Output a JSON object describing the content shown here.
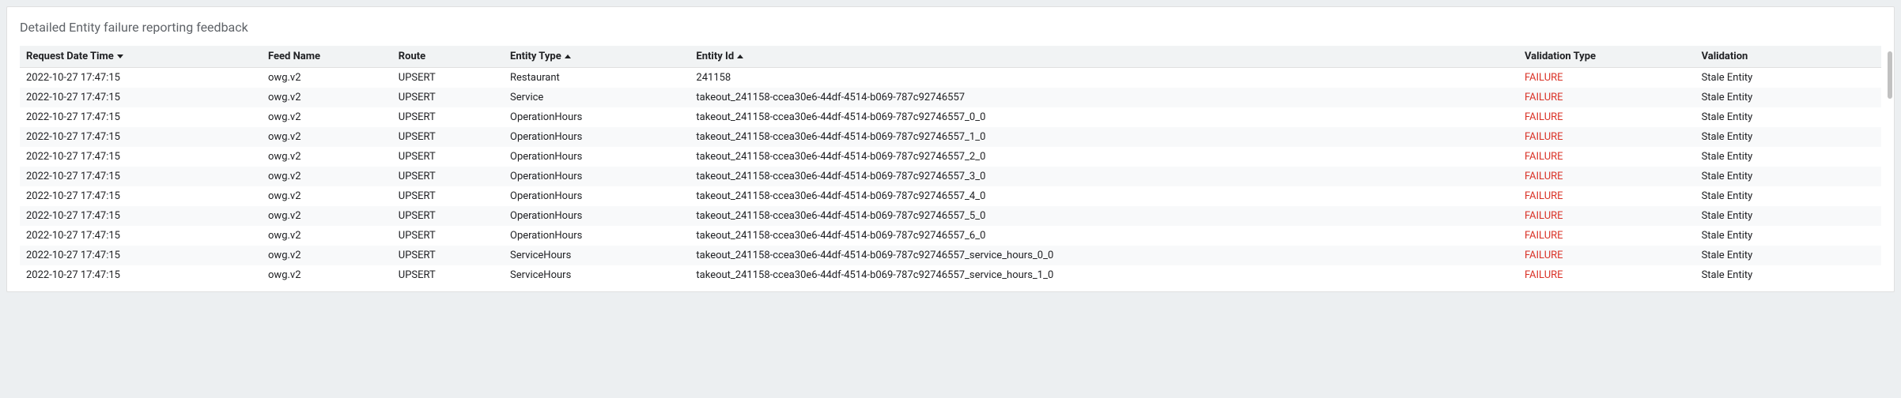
{
  "panel": {
    "title": "Detailed Entity failure reporting feedback"
  },
  "colors": {
    "failure": "#d93025",
    "header_bg": "#f1f3f4",
    "row_alt_bg": "#f8f9fa",
    "page_bg": "#eceff1",
    "panel_bg": "#ffffff",
    "text": "#202124",
    "muted": "#5f6368"
  },
  "table": {
    "columns": [
      {
        "label": "Request Date Time",
        "sort": "desc"
      },
      {
        "label": "Feed Name",
        "sort": null
      },
      {
        "label": "Route",
        "sort": null
      },
      {
        "label": "Entity Type",
        "sort": "asc"
      },
      {
        "label": "Entity Id",
        "sort": "asc"
      },
      {
        "label": "Validation Type",
        "sort": null
      },
      {
        "label": "Validation",
        "sort": null
      }
    ],
    "rows": [
      {
        "datetime": "2022-10-27 17:47:15",
        "feed": "owg.v2",
        "route": "UPSERT",
        "entity_type": "Restaurant",
        "entity_id": "241158",
        "vtype": "FAILURE",
        "validation": "Stale Entity"
      },
      {
        "datetime": "2022-10-27 17:47:15",
        "feed": "owg.v2",
        "route": "UPSERT",
        "entity_type": "Service",
        "entity_id": "takeout_241158-ccea30e6-44df-4514-b069-787c92746557",
        "vtype": "FAILURE",
        "validation": "Stale Entity"
      },
      {
        "datetime": "2022-10-27 17:47:15",
        "feed": "owg.v2",
        "route": "UPSERT",
        "entity_type": "OperationHours",
        "entity_id": "takeout_241158-ccea30e6-44df-4514-b069-787c92746557_0_0",
        "vtype": "FAILURE",
        "validation": "Stale Entity"
      },
      {
        "datetime": "2022-10-27 17:47:15",
        "feed": "owg.v2",
        "route": "UPSERT",
        "entity_type": "OperationHours",
        "entity_id": "takeout_241158-ccea30e6-44df-4514-b069-787c92746557_1_0",
        "vtype": "FAILURE",
        "validation": "Stale Entity"
      },
      {
        "datetime": "2022-10-27 17:47:15",
        "feed": "owg.v2",
        "route": "UPSERT",
        "entity_type": "OperationHours",
        "entity_id": "takeout_241158-ccea30e6-44df-4514-b069-787c92746557_2_0",
        "vtype": "FAILURE",
        "validation": "Stale Entity"
      },
      {
        "datetime": "2022-10-27 17:47:15",
        "feed": "owg.v2",
        "route": "UPSERT",
        "entity_type": "OperationHours",
        "entity_id": "takeout_241158-ccea30e6-44df-4514-b069-787c92746557_3_0",
        "vtype": "FAILURE",
        "validation": "Stale Entity"
      },
      {
        "datetime": "2022-10-27 17:47:15",
        "feed": "owg.v2",
        "route": "UPSERT",
        "entity_type": "OperationHours",
        "entity_id": "takeout_241158-ccea30e6-44df-4514-b069-787c92746557_4_0",
        "vtype": "FAILURE",
        "validation": "Stale Entity"
      },
      {
        "datetime": "2022-10-27 17:47:15",
        "feed": "owg.v2",
        "route": "UPSERT",
        "entity_type": "OperationHours",
        "entity_id": "takeout_241158-ccea30e6-44df-4514-b069-787c92746557_5_0",
        "vtype": "FAILURE",
        "validation": "Stale Entity"
      },
      {
        "datetime": "2022-10-27 17:47:15",
        "feed": "owg.v2",
        "route": "UPSERT",
        "entity_type": "OperationHours",
        "entity_id": "takeout_241158-ccea30e6-44df-4514-b069-787c92746557_6_0",
        "vtype": "FAILURE",
        "validation": "Stale Entity"
      },
      {
        "datetime": "2022-10-27 17:47:15",
        "feed": "owg.v2",
        "route": "UPSERT",
        "entity_type": "ServiceHours",
        "entity_id": "takeout_241158-ccea30e6-44df-4514-b069-787c92746557_service_hours_0_0",
        "vtype": "FAILURE",
        "validation": "Stale Entity"
      },
      {
        "datetime": "2022-10-27 17:47:15",
        "feed": "owg.v2",
        "route": "UPSERT",
        "entity_type": "ServiceHours",
        "entity_id": "takeout_241158-ccea30e6-44df-4514-b069-787c92746557_service_hours_1_0",
        "vtype": "FAILURE",
        "validation": "Stale Entity"
      }
    ]
  }
}
